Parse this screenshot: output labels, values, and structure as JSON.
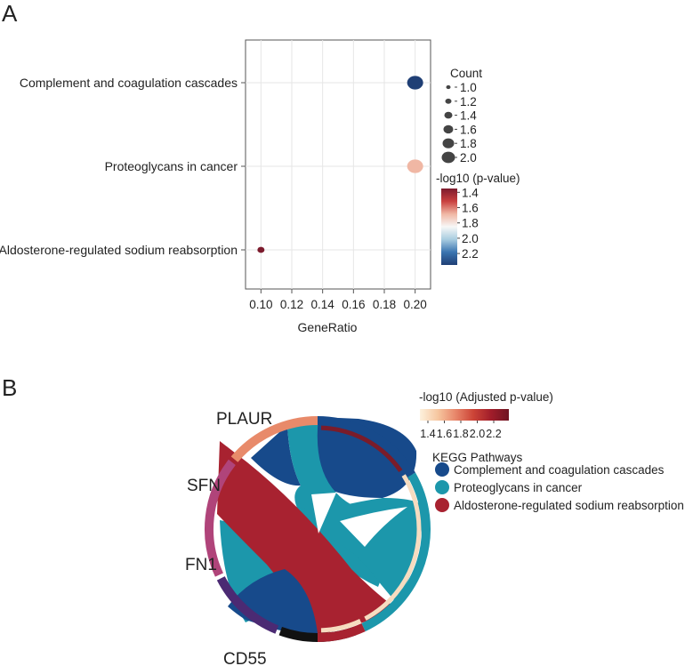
{
  "panel_a_label": "A",
  "panel_b_label": "B",
  "chart_data": [
    {
      "type": "scatter",
      "subtype": "dot-plot",
      "xlabel": "GeneRatio",
      "xlim": [
        0.09,
        0.21
      ],
      "xticks": [
        "0.10",
        "0.12",
        "0.14",
        "0.16",
        "0.18",
        "0.20"
      ],
      "categories": [
        "Complement and coagulation cascades",
        "Proteoglycans in cancer",
        "Aldosterone-regulated sodium reabsorption"
      ],
      "points": [
        {
          "term": "Complement and coagulation cascades",
          "gene_ratio": 0.2,
          "count": 2,
          "neg_log10_p": 2.3,
          "color": "#1f3f75"
        },
        {
          "term": "Proteoglycans in cancer",
          "gene_ratio": 0.2,
          "count": 2,
          "neg_log10_p": 1.75,
          "color": "#f0b7a4"
        },
        {
          "term": "Aldosterone-regulated sodium reabsorption",
          "gene_ratio": 0.1,
          "count": 1,
          "neg_log10_p": 1.4,
          "color": "#7c1b2d"
        }
      ],
      "size_legend": {
        "title": "Count",
        "labels": [
          "1.0",
          "1.2",
          "1.4",
          "1.6",
          "1.8",
          "2.0"
        ],
        "values": [
          1.0,
          1.2,
          1.4,
          1.6,
          1.8,
          2.0
        ]
      },
      "color_legend": {
        "title": "-log10 (p-value)",
        "labels": [
          "1.4",
          "1.6",
          "1.8",
          "2.0",
          "2.2"
        ],
        "range": [
          1.35,
          2.35
        ],
        "colors": [
          "#7c1b2d",
          "#c9403f",
          "#f0b7a4",
          "#f7f7f7",
          "#a8cce0",
          "#3a74b0",
          "#1f3f75"
        ]
      }
    },
    {
      "type": "chord",
      "genes": [
        "PLAUR",
        "SFN",
        "FN1",
        "CD55"
      ],
      "gene_colors": [
        "#e88a6a",
        "#b0447a",
        "#4b2a73",
        "#111111"
      ],
      "pathways": [
        "Complement and coagulation cascades",
        "Proteoglycans in cancer",
        "Aldosterone-regulated sodium reabsorption"
      ],
      "pathway_colors": [
        "#174a8b",
        "#1c97ab",
        "#a82230"
      ],
      "links": [
        {
          "gene": "PLAUR",
          "pathway": "Complement and coagulation cascades"
        },
        {
          "gene": "PLAUR",
          "pathway": "Proteoglycans in cancer"
        },
        {
          "gene": "SFN",
          "pathway": "Aldosterone-regulated sodium reabsorption"
        },
        {
          "gene": "FN1",
          "pathway": "Proteoglycans in cancer"
        },
        {
          "gene": "CD55",
          "pathway": "Complement and coagulation cascades"
        }
      ],
      "padj_legend": {
        "title": "-log10 (Adjusted p-value)",
        "labels": [
          "1.4",
          "1.6",
          "1.8",
          "2.0",
          "2.2"
        ],
        "colors": [
          "#fdf1dd",
          "#f6c7a0",
          "#e8866a",
          "#cc4437",
          "#a11d2a",
          "#6e1422"
        ]
      },
      "pathway_legend_title": "KEGG Pathways"
    }
  ]
}
